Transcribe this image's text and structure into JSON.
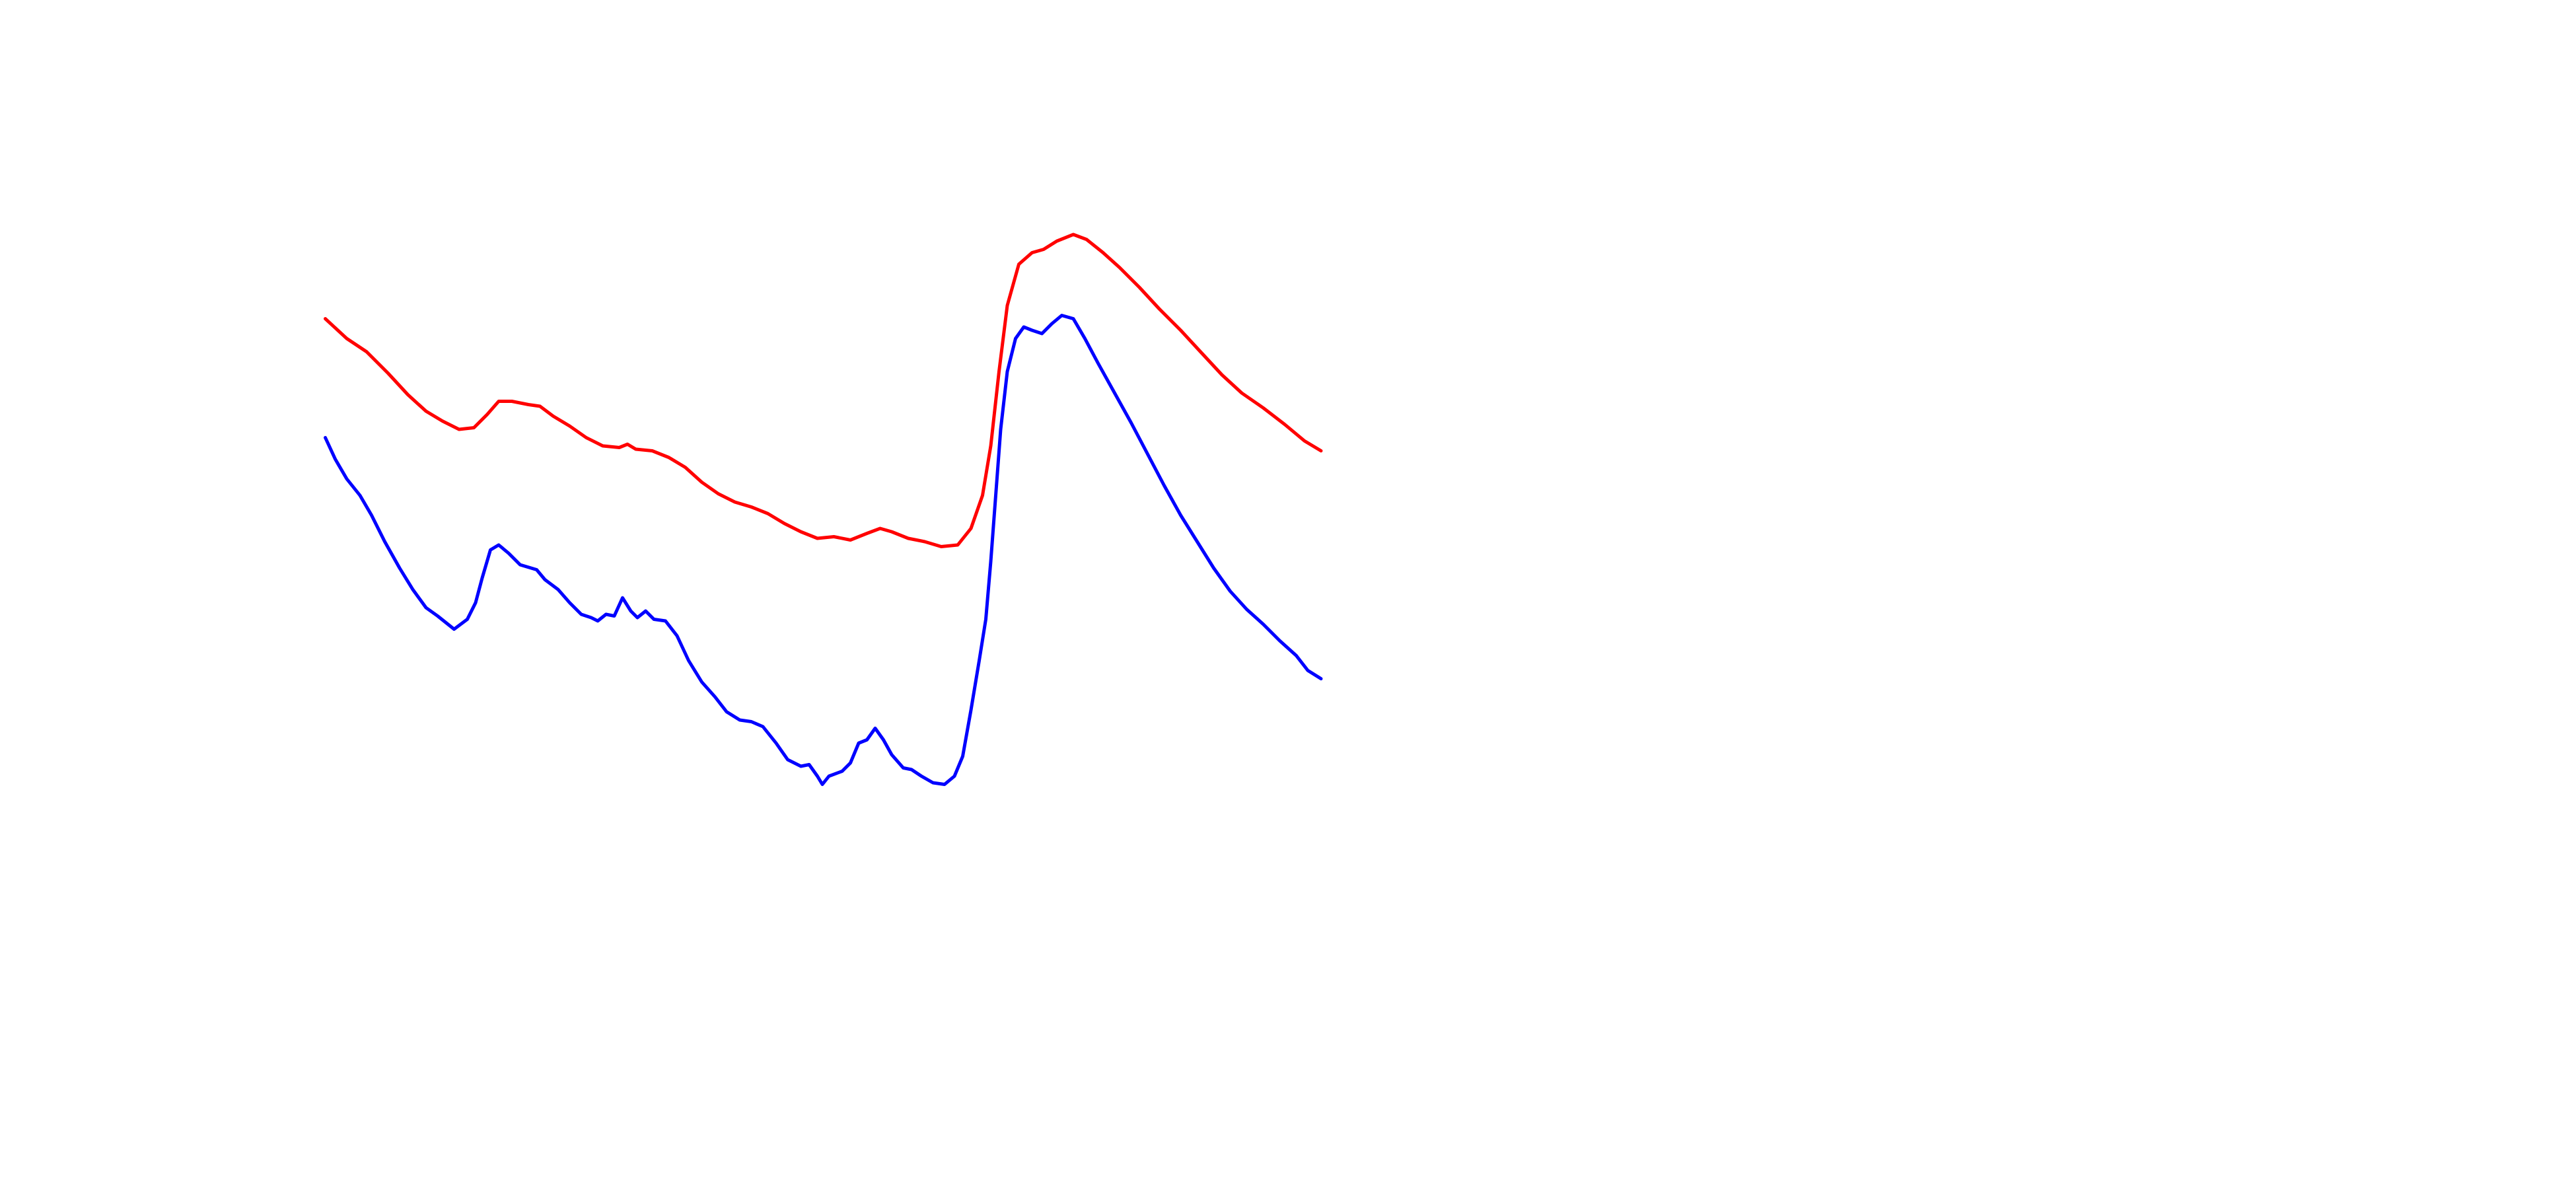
{
  "chart_data": {
    "type": "line",
    "xlim": [
      0,
      1560
    ],
    "ylim": [
      0,
      720
    ],
    "series": [
      {
        "color": "#ff0000",
        "x": [
          197,
          210,
          222,
          235,
          247,
          258,
          268,
          278,
          287,
          295,
          302,
          310,
          320,
          327,
          335,
          345,
          355,
          365,
          375,
          380,
          385,
          395,
          405,
          415,
          425,
          435,
          445,
          455,
          465,
          475,
          485,
          495,
          505,
          515,
          525,
          533,
          540,
          550,
          560,
          570,
          580,
          588,
          595,
          600,
          605,
          610,
          617,
          625,
          632,
          640,
          650,
          658,
          668,
          678,
          690,
          702,
          715,
          727,
          740,
          752,
          765,
          778,
          790,
          800
        ],
        "values": [
          527,
          515,
          507,
          494,
          481,
          471,
          465,
          460,
          461,
          469,
          477,
          477,
          475,
          474,
          468,
          462,
          455,
          450,
          449,
          451,
          448,
          447,
          443,
          437,
          428,
          421,
          416,
          413,
          409,
          403,
          398,
          394,
          395,
          393,
          397,
          400,
          398,
          394,
          392,
          389,
          390,
          400,
          420,
          450,
          495,
          535,
          560,
          567,
          569,
          574,
          578,
          575,
          567,
          558,
          546,
          533,
          520,
          507,
          493,
          482,
          473,
          463,
          453,
          447
        ]
      },
      {
        "color": "#0000ff",
        "x": [
          197,
          203,
          210,
          218,
          225,
          233,
          242,
          250,
          258,
          265,
          275,
          283,
          288,
          292,
          297,
          302,
          308,
          315,
          325,
          330,
          338,
          345,
          352,
          358,
          362,
          367,
          372,
          377,
          382,
          386,
          391,
          396,
          403,
          410,
          417,
          425,
          433,
          440,
          448,
          455,
          462,
          470,
          477,
          485,
          490,
          495,
          498,
          502,
          510,
          515,
          520,
          525,
          530,
          535,
          540,
          547,
          552,
          558,
          565,
          572,
          578,
          583,
          588,
          593,
          597,
          600,
          603,
          606,
          610,
          615,
          620,
          625,
          631,
          637,
          643,
          650,
          657,
          665,
          675,
          685,
          695,
          705,
          715,
          725,
          735,
          745,
          755,
          765,
          775,
          785,
          792,
          800
        ],
        "values": [
          455,
          442,
          430,
          420,
          408,
          392,
          376,
          363,
          352,
          347,
          339,
          345,
          355,
          370,
          387,
          390,
          385,
          378,
          375,
          369,
          363,
          355,
          348,
          346,
          344,
          348,
          347,
          358,
          350,
          346,
          350,
          345,
          344,
          335,
          320,
          307,
          298,
          289,
          284,
          283,
          280,
          270,
          260,
          256,
          257,
          250,
          245,
          250,
          253,
          258,
          270,
          272,
          279,
          272,
          263,
          255,
          254,
          250,
          246,
          245,
          250,
          262,
          290,
          320,
          345,
          380,
          420,
          460,
          495,
          515,
          522,
          520,
          518,
          524,
          529,
          527,
          515,
          500,
          482,
          464,
          445,
          426,
          408,
          392,
          376,
          362,
          351,
          342,
          332,
          323,
          314,
          309
        ]
      }
    ]
  }
}
